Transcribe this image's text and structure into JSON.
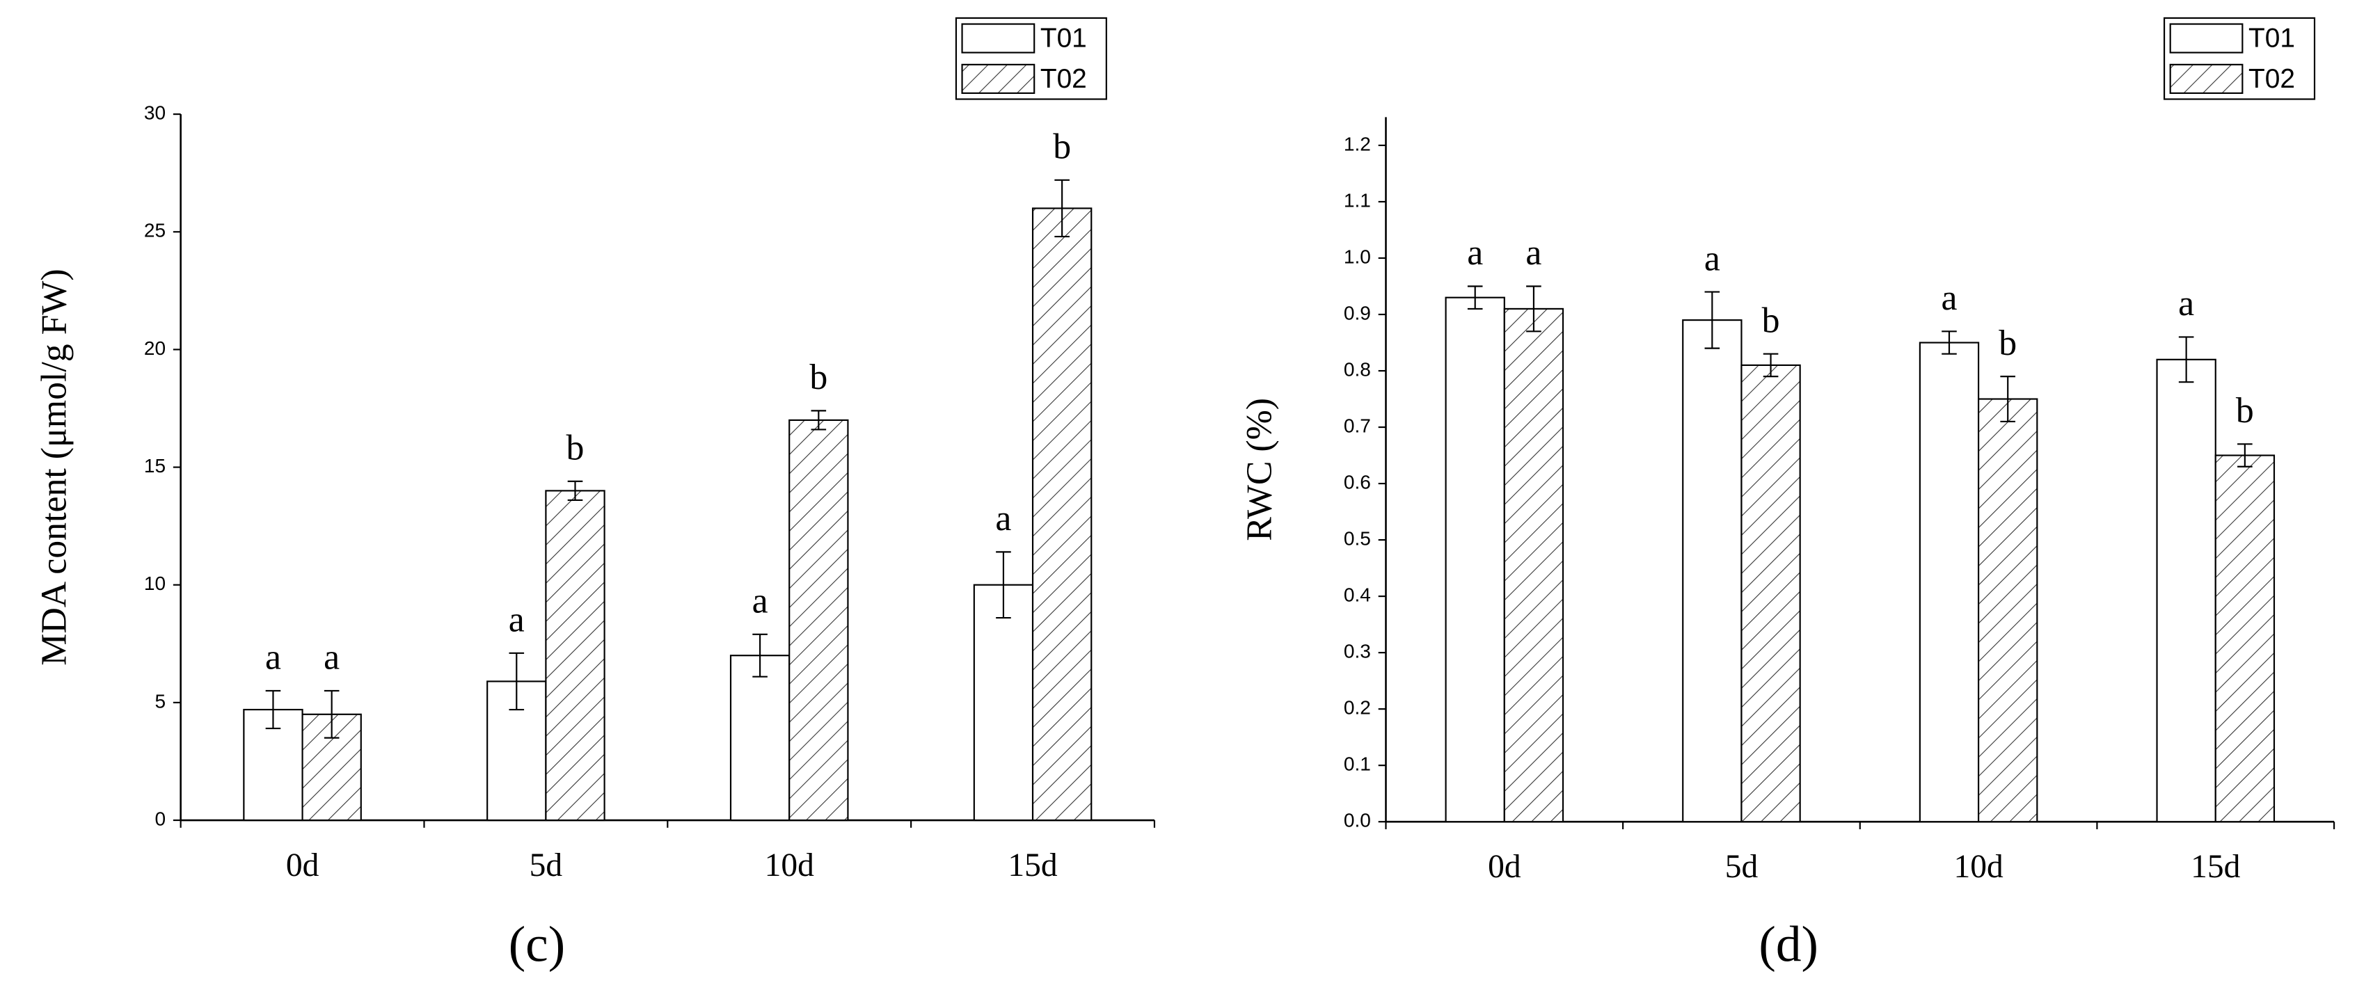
{
  "chart_data": [
    {
      "type": "bar",
      "panel_label": "(c)",
      "ylabel": "MDA content (μmol/g FW)",
      "categories": [
        "0d",
        "5d",
        "10d",
        "15d"
      ],
      "series": [
        {
          "name": "T01",
          "color": "#ffffff",
          "pattern": "none",
          "values": [
            4.7,
            5.9,
            7.0,
            10.0
          ],
          "errors": [
            0.8,
            1.2,
            0.9,
            1.4
          ],
          "letters": [
            "a",
            "a",
            "a",
            "a"
          ]
        },
        {
          "name": "T02",
          "color": "#ffffff",
          "pattern": "hatch",
          "values": [
            4.5,
            14.0,
            17.0,
            26.0
          ],
          "errors": [
            1.0,
            0.4,
            0.4,
            1.2
          ],
          "letters": [
            "a",
            "b",
            "b",
            "b"
          ]
        }
      ],
      "ylim": [
        0,
        30
      ],
      "yticks": [
        0,
        5,
        10,
        15,
        20,
        25,
        30
      ],
      "legend": "top-right"
    },
    {
      "type": "bar",
      "panel_label": "(d)",
      "ylabel": "RWC (%)",
      "categories": [
        "0d",
        "5d",
        "10d",
        "15d"
      ],
      "series": [
        {
          "name": "T01",
          "color": "#ffffff",
          "pattern": "none",
          "values": [
            0.93,
            0.89,
            0.85,
            0.82
          ],
          "errors": [
            0.02,
            0.05,
            0.02,
            0.04
          ],
          "letters": [
            "a",
            "a",
            "a",
            "a"
          ]
        },
        {
          "name": "T02",
          "color": "#ffffff",
          "pattern": "hatch",
          "values": [
            0.91,
            0.81,
            0.75,
            0.65
          ],
          "errors": [
            0.04,
            0.02,
            0.04,
            0.02
          ],
          "letters": [
            "a",
            "b",
            "b",
            "b"
          ]
        }
      ],
      "ylim": [
        0,
        1.25
      ],
      "yticks": [
        {
          "value": 0,
          "label": "0.0"
        },
        0.1,
        0.2,
        0.3,
        0.4,
        0.5,
        0.6,
        0.7,
        0.8,
        0.9,
        {
          "value": 1,
          "label": "1.0"
        },
        1.1,
        1.2
      ],
      "legend": "top-right"
    }
  ]
}
